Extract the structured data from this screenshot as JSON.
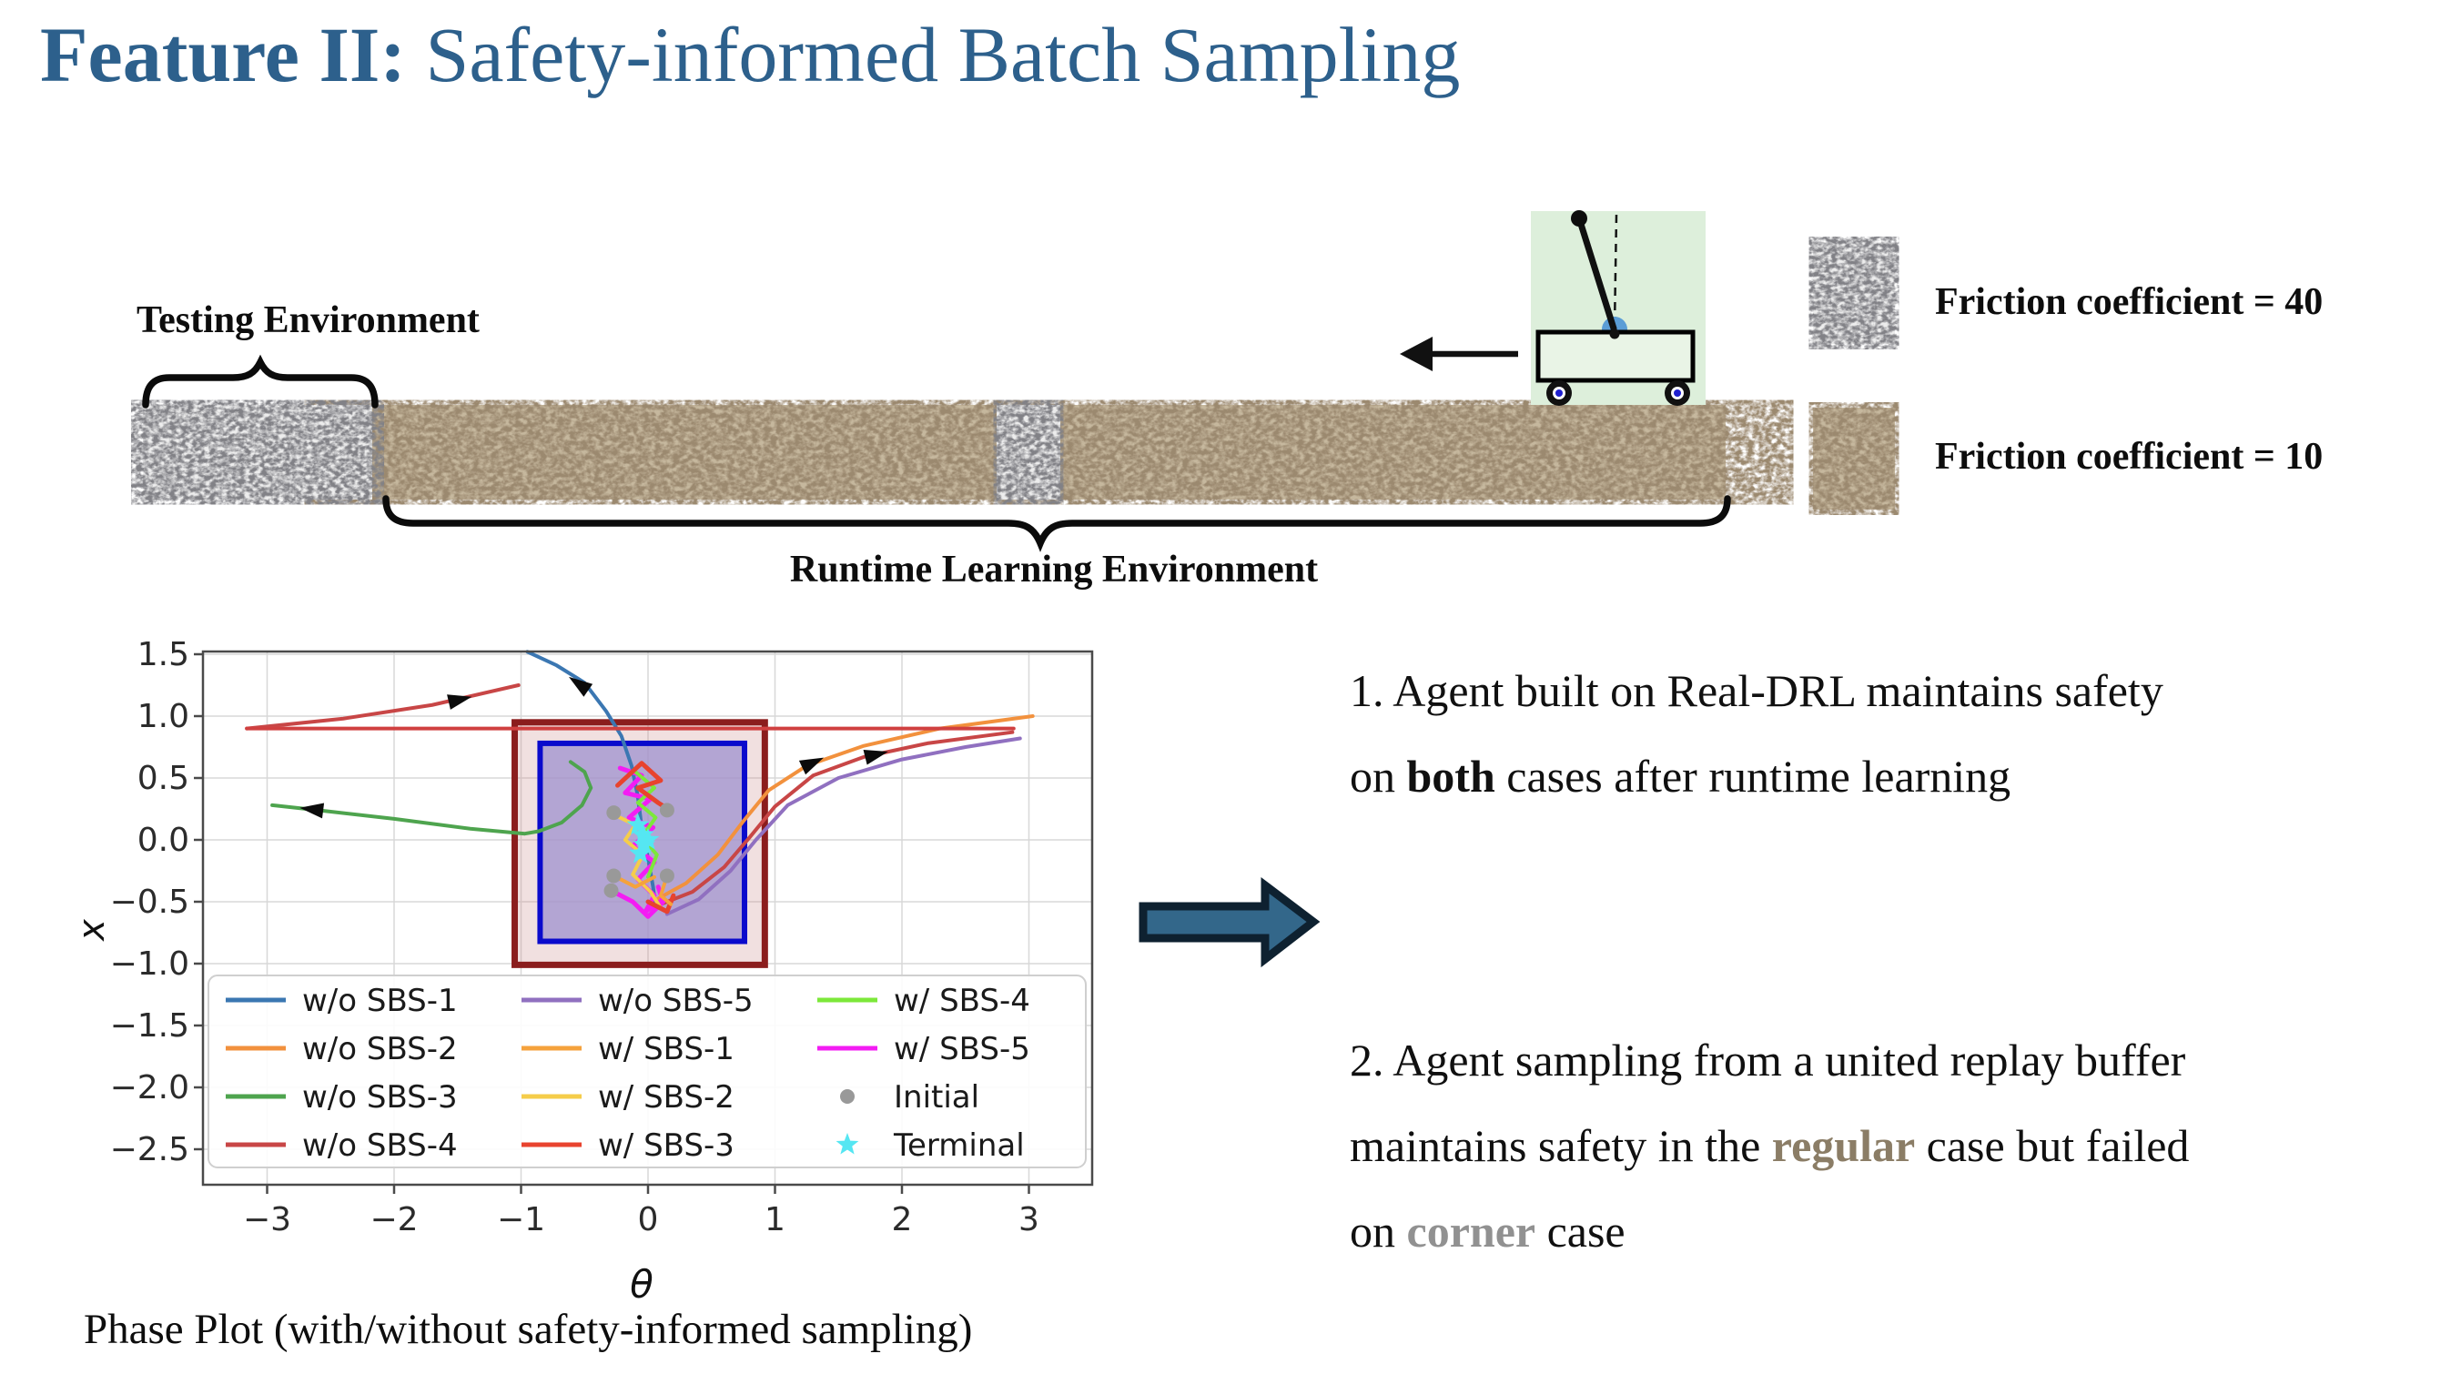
{
  "slide": {
    "title": {
      "bold": "Feature II:",
      "rest": " Safety-informed Batch Sampling",
      "color": "#2d608c"
    },
    "env_diagram": {
      "testing_label": "Testing Environment",
      "runtime_label": "Runtime Learning Environment",
      "friction_label_40": "Friction coefficient = 40",
      "friction_label_10": "Friction coefficient = 10",
      "cartpole_bg_color": "#ddefdb",
      "texture_gray": "#d9d9d9",
      "texture_brown": "#c6b89e"
    },
    "right_panel": {
      "arrow_color": "#33678a",
      "item1": {
        "line1": "1. Agent built on Real-DRL maintains safety",
        "line2_pre": "on ",
        "line2_bold": "both",
        "line2_post": " cases after runtime learning"
      },
      "item2": {
        "line1": "2. Agent sampling from a united replay buffer",
        "line2_pre": "maintains safety in the ",
        "line2_bold": "regular",
        "line2_bold_color": "#8b7d66",
        "line2_post": " case but failed",
        "line3_pre": "on ",
        "line3_bold": "corner",
        "line3_bold_color": "#919191",
        "line3_post": " case"
      }
    },
    "caption": "Phase Plot (with/without safety-informed sampling)"
  },
  "chart_data": {
    "type": "line",
    "title": "Phase Plot (with/without safety-informed sampling)",
    "xlabel": "θ",
    "ylabel": "x",
    "xlim": [
      -3.5,
      3.5
    ],
    "ylim": [
      -2.8,
      1.52
    ],
    "grid": true,
    "legend_position": "lower left, 3 columns",
    "xtick_labels": [
      "−3",
      "−2",
      "−1",
      "0",
      "1",
      "2",
      "3"
    ],
    "xtick_values": [
      -3,
      -2,
      -1,
      0,
      1,
      2,
      3
    ],
    "ytick_labels": [
      "1.5",
      "1.0",
      "0.5",
      "0.0",
      "−0.5",
      "−1.0",
      "−1.5",
      "−2.0",
      "−2.5"
    ],
    "ytick_values": [
      1.5,
      1.0,
      0.5,
      0.0,
      -0.5,
      -1.0,
      -1.5,
      -2.0,
      -2.5
    ],
    "regions": [
      {
        "name": "outer-safety-boundary",
        "x": [
          -1.05,
          0.92
        ],
        "y": [
          -1.01,
          0.95
        ],
        "stroke": "#8b1d1d",
        "fill": "rgba(204,142,142,0.28)",
        "lw": 7
      },
      {
        "name": "inner-safe-set",
        "x": [
          -0.85,
          0.76
        ],
        "y": [
          -0.82,
          0.78
        ],
        "stroke": "#0a0acc",
        "fill": "rgba(164,150,208,0.8)",
        "lw": 6
      }
    ],
    "legend": [
      {
        "label": "w/o SBS-1",
        "color": "#3b77b2",
        "marker": "line"
      },
      {
        "label": "w/o SBS-2",
        "color": "#f2913d",
        "marker": "line"
      },
      {
        "label": "w/o SBS-3",
        "color": "#4ea44e",
        "marker": "line"
      },
      {
        "label": "w/o SBS-4",
        "color": "#c84646",
        "marker": "line"
      },
      {
        "label": "w/o SBS-5",
        "color": "#9070c0",
        "marker": "line"
      },
      {
        "label": "w/ SBS-1",
        "color": "#f5a23c",
        "marker": "line"
      },
      {
        "label": "w/ SBS-2",
        "color": "#f5cd4a",
        "marker": "line"
      },
      {
        "label": "w/ SBS-3",
        "color": "#e8432e",
        "marker": "line"
      },
      {
        "label": "w/ SBS-4",
        "color": "#7ce83a",
        "marker": "line"
      },
      {
        "label": "w/ SBS-5",
        "color": "#f31cf3",
        "marker": "line"
      },
      {
        "label": "Initial",
        "color": "#999999",
        "marker": "dot"
      },
      {
        "label": "Terminal",
        "color": "#55e6f2",
        "marker": "star"
      }
    ],
    "series": [
      {
        "name": "w/o SBS-1",
        "color": "#3b77b2",
        "width": 4,
        "points": [
          [
            -0.95,
            1.52
          ],
          [
            -0.72,
            1.41
          ],
          [
            -0.5,
            1.27
          ],
          [
            -0.33,
            1.04
          ],
          [
            -0.21,
            0.84
          ],
          [
            -0.13,
            0.6
          ],
          [
            -0.08,
            0.35
          ],
          [
            -0.05,
            0.1
          ],
          [
            0.0,
            -0.15
          ],
          [
            0.04,
            -0.38
          ],
          [
            0.06,
            -0.55
          ]
        ]
      },
      {
        "name": "w/o SBS-2",
        "color": "#f2913d",
        "width": 4,
        "points": [
          [
            0.07,
            -0.48
          ],
          [
            0.3,
            -0.35
          ],
          [
            0.55,
            -0.12
          ],
          [
            0.75,
            0.15
          ],
          [
            0.95,
            0.4
          ],
          [
            1.25,
            0.6
          ],
          [
            1.7,
            0.76
          ],
          [
            2.3,
            0.9
          ],
          [
            3.03,
            1.0
          ]
        ]
      },
      {
        "name": "w/o SBS-3",
        "color": "#4ea44e",
        "width": 4,
        "points": [
          [
            -0.61,
            0.63
          ],
          [
            -0.5,
            0.55
          ],
          [
            -0.45,
            0.42
          ],
          [
            -0.52,
            0.28
          ],
          [
            -0.68,
            0.14
          ],
          [
            -0.86,
            0.07
          ],
          [
            -0.97,
            0.05
          ],
          [
            -1.4,
            0.09
          ],
          [
            -2.0,
            0.17
          ],
          [
            -2.6,
            0.24
          ],
          [
            -2.96,
            0.28
          ]
        ]
      },
      {
        "name": "w/o SBS-4 wrap",
        "color": "#c84646",
        "width": 4,
        "points": [
          [
            -3.16,
            0.9
          ],
          [
            -2.4,
            0.98
          ],
          [
            -1.7,
            1.09
          ],
          [
            -1.02,
            1.25
          ]
        ]
      },
      {
        "name": "w/o SBS-4 slide",
        "color": "#d04040",
        "width": 4,
        "points": [
          [
            -3.16,
            0.9
          ],
          [
            2.88,
            0.9
          ]
        ]
      },
      {
        "name": "w/o SBS-4 exit",
        "color": "#c84646",
        "width": 4,
        "points": [
          [
            0.1,
            -0.52
          ],
          [
            0.35,
            -0.42
          ],
          [
            0.6,
            -0.22
          ],
          [
            0.8,
            0.02
          ],
          [
            1.0,
            0.27
          ],
          [
            1.3,
            0.52
          ],
          [
            1.7,
            0.67
          ],
          [
            2.2,
            0.78
          ],
          [
            2.87,
            0.87
          ]
        ]
      },
      {
        "name": "w/o SBS-5",
        "color": "#9070c0",
        "width": 4,
        "points": [
          [
            0.15,
            -0.6
          ],
          [
            0.4,
            -0.48
          ],
          [
            0.65,
            -0.25
          ],
          [
            0.85,
            0.0
          ],
          [
            1.1,
            0.28
          ],
          [
            1.5,
            0.5
          ],
          [
            2.0,
            0.65
          ],
          [
            2.5,
            0.75
          ],
          [
            2.93,
            0.82
          ]
        ]
      },
      {
        "name": "w/ SBS-5 a",
        "color": "#f31cf3",
        "width": 5,
        "points": [
          [
            -0.22,
            0.58
          ],
          [
            -0.05,
            0.52
          ],
          [
            -0.18,
            0.38
          ],
          [
            0.02,
            0.33
          ],
          [
            -0.15,
            0.18
          ],
          [
            0.04,
            0.1
          ],
          [
            -0.12,
            -0.05
          ],
          [
            0.05,
            -0.18
          ],
          [
            -0.08,
            -0.32
          ],
          [
            0.05,
            -0.45
          ],
          [
            -0.02,
            -0.58
          ],
          [
            0.12,
            -0.48
          ]
        ]
      },
      {
        "name": "w/ SBS-5 b",
        "color": "#f31cf3",
        "width": 5,
        "points": [
          [
            -0.29,
            -0.41
          ],
          [
            -0.12,
            -0.5
          ],
          [
            0.0,
            -0.62
          ],
          [
            0.12,
            -0.5
          ],
          [
            0.08,
            -0.38
          ]
        ]
      },
      {
        "name": "w/ SBS-4",
        "color": "#7ce83a",
        "width": 4,
        "points": [
          [
            -0.1,
            0.55
          ],
          [
            0.05,
            0.42
          ],
          [
            -0.08,
            0.3
          ],
          [
            0.06,
            0.18
          ],
          [
            -0.05,
            0.02
          ],
          [
            0.07,
            -0.12
          ],
          [
            0.0,
            -0.3
          ]
        ]
      },
      {
        "name": "w/ SBS-2",
        "color": "#f5cd4a",
        "width": 4,
        "points": [
          [
            -0.26,
            0.2
          ],
          [
            -0.1,
            0.12
          ],
          [
            -0.18,
            0.0
          ],
          [
            -0.04,
            -0.12
          ],
          [
            -0.12,
            -0.28
          ],
          [
            0.02,
            -0.42
          ],
          [
            0.1,
            -0.55
          ]
        ]
      },
      {
        "name": "w/ SBS-3 a",
        "color": "#e8432e",
        "width": 5,
        "points": [
          [
            -0.24,
            0.44
          ],
          [
            -0.05,
            0.62
          ],
          [
            0.1,
            0.48
          ],
          [
            -0.08,
            0.42
          ],
          [
            0.08,
            0.3
          ],
          [
            0.14,
            0.26
          ]
        ]
      },
      {
        "name": "w/ SBS-3 b",
        "color": "#e8432e",
        "width": 5,
        "points": [
          [
            0.0,
            -0.5
          ],
          [
            0.15,
            -0.58
          ],
          [
            0.2,
            -0.45
          ]
        ]
      },
      {
        "name": "w/ SBS-1 a",
        "color": "#f5a23c",
        "width": 4,
        "points": [
          [
            -0.27,
            -0.29
          ],
          [
            -0.1,
            -0.38
          ],
          [
            0.05,
            -0.3
          ]
        ]
      },
      {
        "name": "w/ SBS-1 b",
        "color": "#f5a23c",
        "width": 4,
        "points": [
          [
            0.15,
            -0.29
          ],
          [
            0.1,
            -0.45
          ],
          [
            0.18,
            -0.52
          ]
        ]
      }
    ],
    "markers": {
      "initial": {
        "color": "#999999",
        "points": [
          [
            -0.27,
            0.22
          ],
          [
            0.15,
            0.24
          ],
          [
            -0.27,
            -0.29
          ],
          [
            0.15,
            -0.29
          ],
          [
            -0.29,
            -0.41
          ]
        ]
      },
      "terminal": {
        "color": "#55e6f2",
        "points": [
          [
            -0.08,
            0.12
          ],
          [
            -0.04,
            0.04
          ],
          [
            0.0,
            0.0
          ],
          [
            -0.03,
            -0.04
          ],
          [
            -0.06,
            -0.11
          ]
        ]
      }
    },
    "arrows": [
      {
        "x": -0.53,
        "y": 1.25,
        "angle": 215
      },
      {
        "x": -2.63,
        "y": 0.245,
        "angle": 187
      },
      {
        "x": -1.5,
        "y": 1.13,
        "angle": -13
      },
      {
        "x": 1.28,
        "y": 0.615,
        "angle": -25
      },
      {
        "x": 1.78,
        "y": 0.685,
        "angle": -14
      }
    ]
  }
}
